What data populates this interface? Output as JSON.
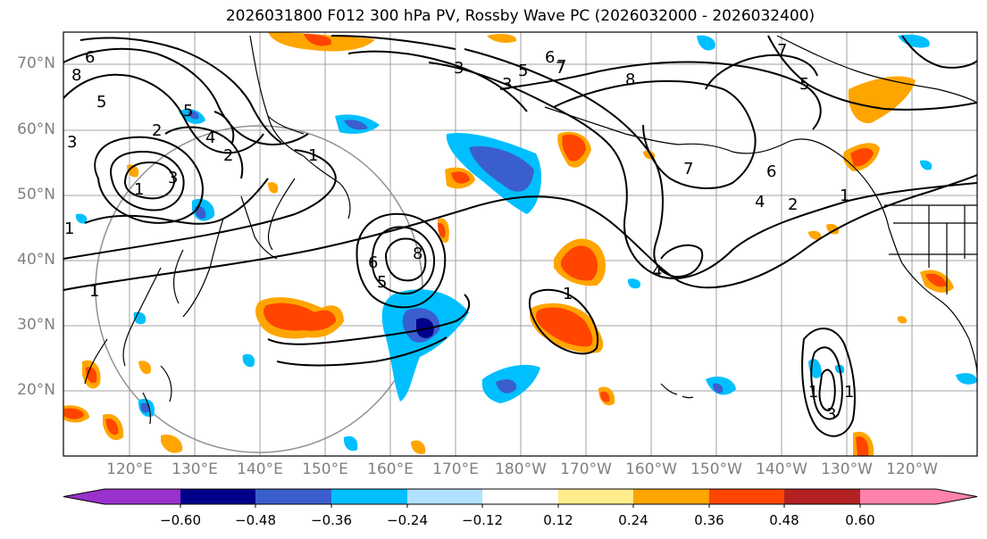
{
  "title": "2026031800 F012 300 hPa PV, Rossby Wave PC (2026032000 - 2026032400)",
  "lat_labels": [
    "70°N",
    "60°N",
    "50°N",
    "40°N",
    "30°N",
    "20°N"
  ],
  "lon_labels": [
    "120°E",
    "130°E",
    "140°E",
    "150°E",
    "160°E",
    "170°E",
    "180°W",
    "170°W",
    "160°W",
    "150°W",
    "140°W",
    "130°W",
    "120°W"
  ],
  "colorbar": {
    "colors": [
      "#9932cc",
      "#00008b",
      "#3a5fcd",
      "#00bfff",
      "#b0e2ff",
      "#ffffff",
      "#ffec8b",
      "#ffa500",
      "#ff4500",
      "#b22222",
      "#ff82ab"
    ],
    "tick_labels": [
      "−0.60",
      "−0.48",
      "−0.36",
      "−0.24",
      "−0.12",
      "0.12",
      "0.24",
      "0.36",
      "0.48",
      "0.60"
    ]
  },
  "contour_labels": [
    "8",
    "6",
    "5",
    "3",
    "2",
    "1",
    "1",
    "1",
    "5",
    "4",
    "3",
    "2",
    "1",
    "5",
    "6",
    "8",
    "3",
    "5",
    "6",
    "7",
    "3",
    "5",
    "7",
    "8",
    "6",
    "4",
    "2",
    "1",
    "7",
    "4",
    "1",
    "1",
    "3",
    "1",
    "7"
  ]
}
